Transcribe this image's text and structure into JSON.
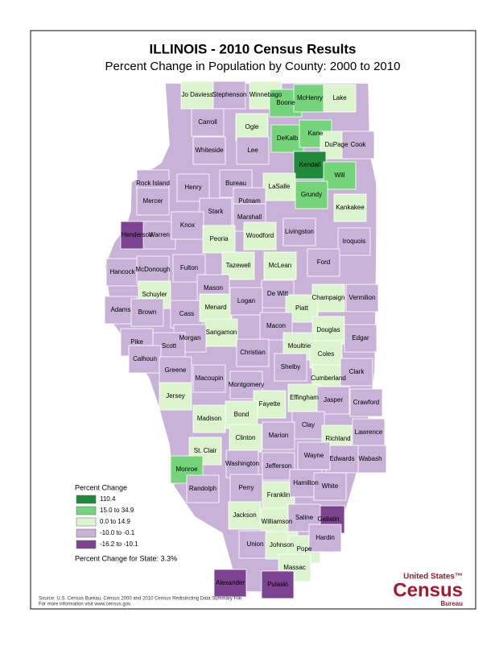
{
  "title": "ILLINOIS - 2010 Census Results",
  "subtitle": "Percent Change in Population by County:  2000 to 2010",
  "legend": {
    "title": "Percent Change",
    "items": [
      {
        "label": "110.4",
        "color": "#1f8a3c"
      },
      {
        "label": "15.0 to 34.9",
        "color": "#74d47a"
      },
      {
        "label": "0.0 to 14.9",
        "color": "#dcf5cf"
      },
      {
        "label": "-10.0 to -0.1",
        "color": "#c8b2d8"
      },
      {
        "label": "-16.2 to -10.1",
        "color": "#7c4390"
      }
    ],
    "state_note": "Percent Change for State:  3.3%"
  },
  "counties": [
    {
      "name": "Jo Daviess",
      "class": 2
    },
    {
      "name": "Stephenson",
      "class": 3
    },
    {
      "name": "Winnebago",
      "class": 2
    },
    {
      "name": "Boone",
      "class": 1
    },
    {
      "name": "McHenry",
      "class": 1
    },
    {
      "name": "Lake",
      "class": 2
    },
    {
      "name": "Carroll",
      "class": 3
    },
    {
      "name": "Ogle",
      "class": 2
    },
    {
      "name": "DeKalb",
      "class": 1
    },
    {
      "name": "Kane",
      "class": 1
    },
    {
      "name": "DuPage",
      "class": 2
    },
    {
      "name": "Cook",
      "class": 3
    },
    {
      "name": "Whiteside",
      "class": 3
    },
    {
      "name": "Lee",
      "class": 3
    },
    {
      "name": "Kendall",
      "class": 0
    },
    {
      "name": "Will",
      "class": 1
    },
    {
      "name": "Rock Island",
      "class": 3
    },
    {
      "name": "Henry",
      "class": 3
    },
    {
      "name": "Bureau",
      "class": 3
    },
    {
      "name": "LaSalle",
      "class": 2
    },
    {
      "name": "Grundy",
      "class": 1
    },
    {
      "name": "Putnam",
      "class": 3
    },
    {
      "name": "Mercer",
      "class": 3
    },
    {
      "name": "Stark",
      "class": 3
    },
    {
      "name": "Marshall",
      "class": 3
    },
    {
      "name": "Kankakee",
      "class": 2
    },
    {
      "name": "Henderson",
      "class": 4
    },
    {
      "name": "Warren",
      "class": 3
    },
    {
      "name": "Knox",
      "class": 3
    },
    {
      "name": "Peoria",
      "class": 2
    },
    {
      "name": "Woodford",
      "class": 2
    },
    {
      "name": "Livingston",
      "class": 3
    },
    {
      "name": "Iroquois",
      "class": 3
    },
    {
      "name": "Hancock",
      "class": 3
    },
    {
      "name": "McDonough",
      "class": 3
    },
    {
      "name": "Fulton",
      "class": 3
    },
    {
      "name": "Tazewell",
      "class": 2
    },
    {
      "name": "McLean",
      "class": 2
    },
    {
      "name": "Ford",
      "class": 3
    },
    {
      "name": "Vermilion",
      "class": 3
    },
    {
      "name": "Schuyler",
      "class": 2
    },
    {
      "name": "Mason",
      "class": 3
    },
    {
      "name": "De Witt",
      "class": 3
    },
    {
      "name": "Champaign",
      "class": 2
    },
    {
      "name": "Adams",
      "class": 3
    },
    {
      "name": "Brown",
      "class": 3
    },
    {
      "name": "Cass",
      "class": 3
    },
    {
      "name": "Menard",
      "class": 2
    },
    {
      "name": "Logan",
      "class": 3
    },
    {
      "name": "Piatt",
      "class": 2
    },
    {
      "name": "Macon",
      "class": 3
    },
    {
      "name": "Sangamon",
      "class": 2
    },
    {
      "name": "Morgan",
      "class": 3
    },
    {
      "name": "Scott",
      "class": 3
    },
    {
      "name": "Pike",
      "class": 3
    },
    {
      "name": "Douglas",
      "class": 2
    },
    {
      "name": "Edgar",
      "class": 3
    },
    {
      "name": "Moultrie",
      "class": 2
    },
    {
      "name": "Coles",
      "class": 2
    },
    {
      "name": "Christian",
      "class": 3
    },
    {
      "name": "Shelby",
      "class": 3
    },
    {
      "name": "Calhoun",
      "class": 3
    },
    {
      "name": "Greene",
      "class": 3
    },
    {
      "name": "Macoupin",
      "class": 3
    },
    {
      "name": "Montgomery",
      "class": 3
    },
    {
      "name": "Cumberland",
      "class": 2
    },
    {
      "name": "Clark",
      "class": 3
    },
    {
      "name": "Jersey",
      "class": 2
    },
    {
      "name": "Effingham",
      "class": 2
    },
    {
      "name": "Jasper",
      "class": 3
    },
    {
      "name": "Crawford",
      "class": 3
    },
    {
      "name": "Fayette",
      "class": 2
    },
    {
      "name": "Madison",
      "class": 2
    },
    {
      "name": "Bond",
      "class": 2
    },
    {
      "name": "Clay",
      "class": 3
    },
    {
      "name": "Richland",
      "class": 2
    },
    {
      "name": "Lawrence",
      "class": 3
    },
    {
      "name": "Clinton",
      "class": 2
    },
    {
      "name": "Marion",
      "class": 3
    },
    {
      "name": "St. Clair",
      "class": 2
    },
    {
      "name": "Wabash",
      "class": 3
    },
    {
      "name": "Edwards",
      "class": 3
    },
    {
      "name": "Monroe",
      "class": 1
    },
    {
      "name": "Washington",
      "class": 3
    },
    {
      "name": "Jefferson",
      "class": 3
    },
    {
      "name": "Wayne",
      "class": 3
    },
    {
      "name": "Randolph",
      "class": 3
    },
    {
      "name": "Perry",
      "class": 3
    },
    {
      "name": "Franklin",
      "class": 2
    },
    {
      "name": "Hamilton",
      "class": 3
    },
    {
      "name": "White",
      "class": 3
    },
    {
      "name": "Gallatin",
      "class": 4
    },
    {
      "name": "Jackson",
      "class": 2
    },
    {
      "name": "Williamson",
      "class": 2
    },
    {
      "name": "Saline",
      "class": 3
    },
    {
      "name": "Union",
      "class": 3
    },
    {
      "name": "Johnson",
      "class": 2
    },
    {
      "name": "Pope",
      "class": 2
    },
    {
      "name": "Hardin",
      "class": 3
    },
    {
      "name": "Massac",
      "class": 2
    },
    {
      "name": "Alexander",
      "class": 4
    },
    {
      "name": "Pulaski",
      "class": 4
    }
  ],
  "source": [
    "Source:  U.S. Census Bureau, Census 2000 and 2010 Census Redistricting Data Summary File.",
    "For more information visit www.census.gov."
  ],
  "logo": {
    "line1": "United States™",
    "line2": "Census",
    "line3": "Bureau"
  }
}
